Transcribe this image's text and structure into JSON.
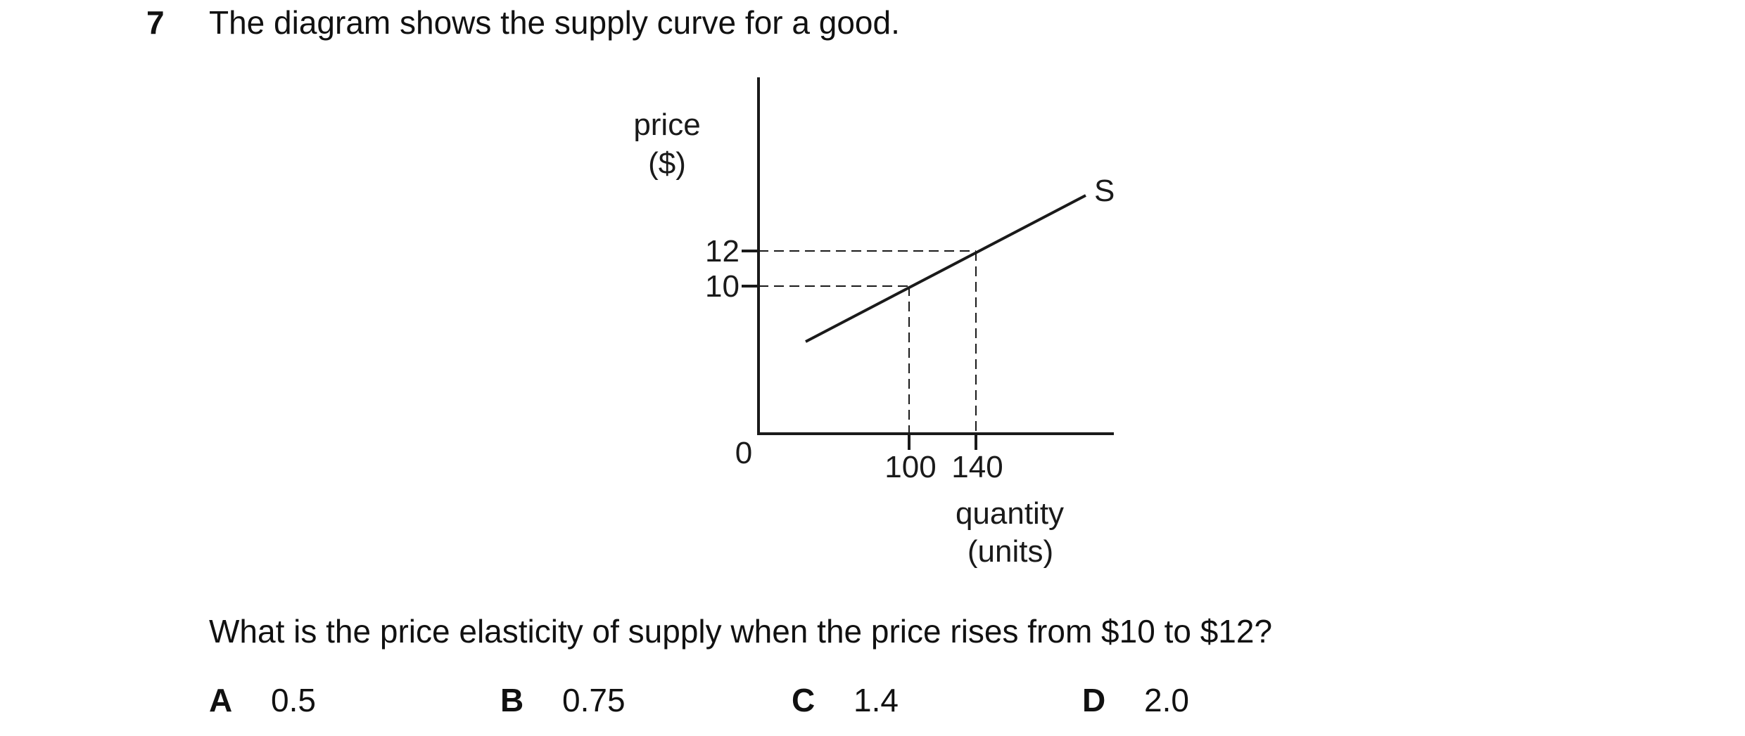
{
  "question": {
    "number": "7",
    "stem": "The diagram shows the supply curve for a good.",
    "prompt": "What is the price elasticity of supply when the price rises from $10 to $12?",
    "options": [
      {
        "letter": "A",
        "value": "0.5"
      },
      {
        "letter": "B",
        "value": "0.75"
      },
      {
        "letter": "C",
        "value": "1.4"
      },
      {
        "letter": "D",
        "value": "2.0"
      }
    ]
  },
  "diagram": {
    "y_label_line1": "price",
    "y_label_line2": "($)",
    "x_label_line1": "quantity",
    "x_label_line2": "(units)",
    "origin": "0",
    "curve_label": "S",
    "price_ticks": [
      "12",
      "10"
    ],
    "quantity_ticks": [
      "100",
      "140"
    ]
  }
}
